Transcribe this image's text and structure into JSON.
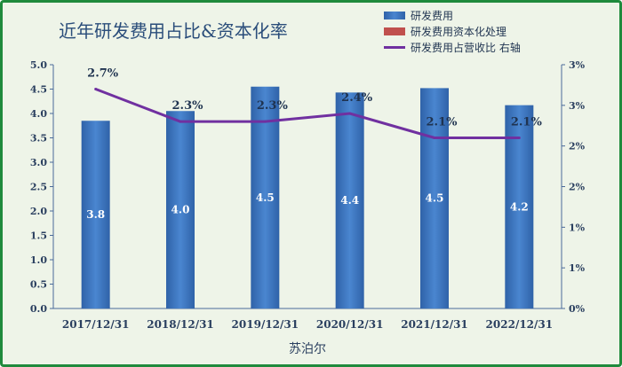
{
  "chart_data": {
    "type": "bar",
    "title": "近年研发费用占比&资本化率",
    "xlabel": "苏泊尔",
    "categories": [
      "2017/12/31",
      "2018/12/31",
      "2019/12/31",
      "2020/12/31",
      "2021/12/31",
      "2022/12/31"
    ],
    "y_left": {
      "range": [
        0,
        5
      ],
      "ticks": [
        "0.0",
        "0.5",
        "1.0",
        "1.5",
        "2.0",
        "2.5",
        "3.0",
        "3.5",
        "4.0",
        "4.5",
        "5.0"
      ]
    },
    "y_right": {
      "range": [
        0,
        3
      ],
      "ticks": [
        "0%",
        "1%",
        "1%",
        "2%",
        "2%",
        "3%",
        "3%"
      ]
    },
    "series": [
      {
        "name": "研发费用",
        "kind": "bar",
        "values": [
          3.85,
          4.05,
          4.55,
          4.43,
          4.52,
          4.17
        ],
        "labels": [
          "3.8",
          "4.0",
          "4.5",
          "4.4",
          "4.5",
          "4.2"
        ],
        "color": "#3f77c2"
      },
      {
        "name": "研发费用资本化处理",
        "kind": "bar",
        "values": [
          0,
          0,
          0,
          0,
          0,
          0
        ],
        "labels": [],
        "color": "#c0504d"
      },
      {
        "name": "研发费用占营收比 右轴",
        "kind": "line",
        "axis": "right",
        "values": [
          2.7,
          2.3,
          2.3,
          2.4,
          2.1,
          2.1
        ],
        "labels": [
          "2.7%",
          "2.3%",
          "2.3%",
          "2.4%",
          "2.1%",
          "2.1%"
        ],
        "color": "#7030a0"
      }
    ],
    "legend": "top-right",
    "grid": false
  }
}
